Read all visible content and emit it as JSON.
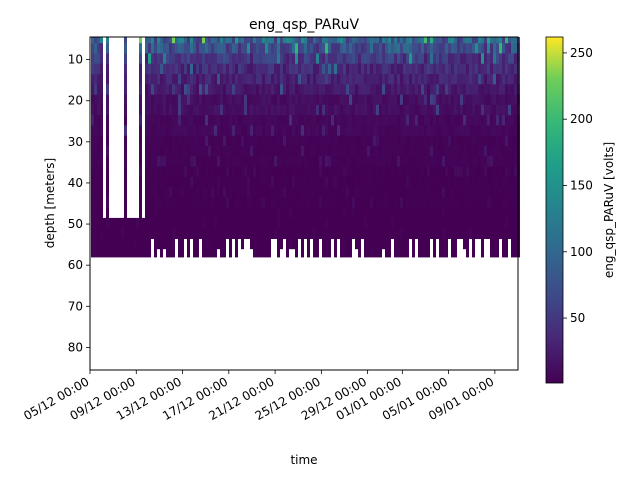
{
  "chart_data": {
    "type": "heatmap",
    "title": "eng_qsp_PARuV",
    "xlabel": "time",
    "ylabel": "depth [meters]",
    "colorbar_label": "eng_qsp_PARuV [volts]",
    "colormap": "viridis",
    "x_start": "2024-12-05",
    "x_end": "2025-01-11",
    "x_tick_labels": [
      "05/12 00:00",
      "09/12 00:00",
      "13/12 00:00",
      "17/12 00:00",
      "21/12 00:00",
      "25/12 00:00",
      "29/12 00:00",
      "01/01 00:00",
      "05/01 00:00",
      "09/01 00:00"
    ],
    "x_tick_dates": [
      "2024-12-05",
      "2024-12-09",
      "2024-12-13",
      "2024-12-17",
      "2024-12-21",
      "2024-12-25",
      "2024-12-29",
      "2025-01-01",
      "2025-01-05",
      "2025-01-09"
    ],
    "y_ticks": [
      10,
      20,
      30,
      40,
      50,
      60,
      70,
      80
    ],
    "ylim": [
      85.5,
      4.5
    ],
    "y_inverted": true,
    "colorbar_ticks": [
      50,
      100,
      150,
      200,
      250
    ],
    "clim": [
      1,
      262
    ],
    "colorbar_ticks_text": [
      "50",
      "100",
      "150",
      "200",
      "250"
    ],
    "depth_bins": [
      5,
      7,
      10,
      12,
      15,
      17,
      20,
      22,
      25,
      27,
      30,
      32,
      35,
      37,
      40,
      42,
      45,
      47,
      50,
      52,
      55,
      57
    ],
    "max_profile_depth_m": 57,
    "approx_values_by_depth_volts": [
      {
        "depth": 5,
        "typical": 120,
        "max": 262
      },
      {
        "depth": 7,
        "typical": 90,
        "max": 200
      },
      {
        "depth": 10,
        "typical": 60,
        "max": 170
      },
      {
        "depth": 12,
        "typical": 45,
        "max": 120
      },
      {
        "depth": 15,
        "typical": 35,
        "max": 90
      },
      {
        "depth": 17,
        "typical": 25,
        "max": 80
      },
      {
        "depth": 20,
        "typical": 15,
        "max": 60
      },
      {
        "depth": 25,
        "typical": 8,
        "max": 40
      },
      {
        "depth": 30,
        "typical": 4,
        "max": 20
      },
      {
        "depth": 40,
        "typical": 2,
        "max": 10
      },
      {
        "depth": 50,
        "typical": 1,
        "max": 5
      },
      {
        "depth": 57,
        "typical": 1,
        "max": 3
      }
    ]
  }
}
